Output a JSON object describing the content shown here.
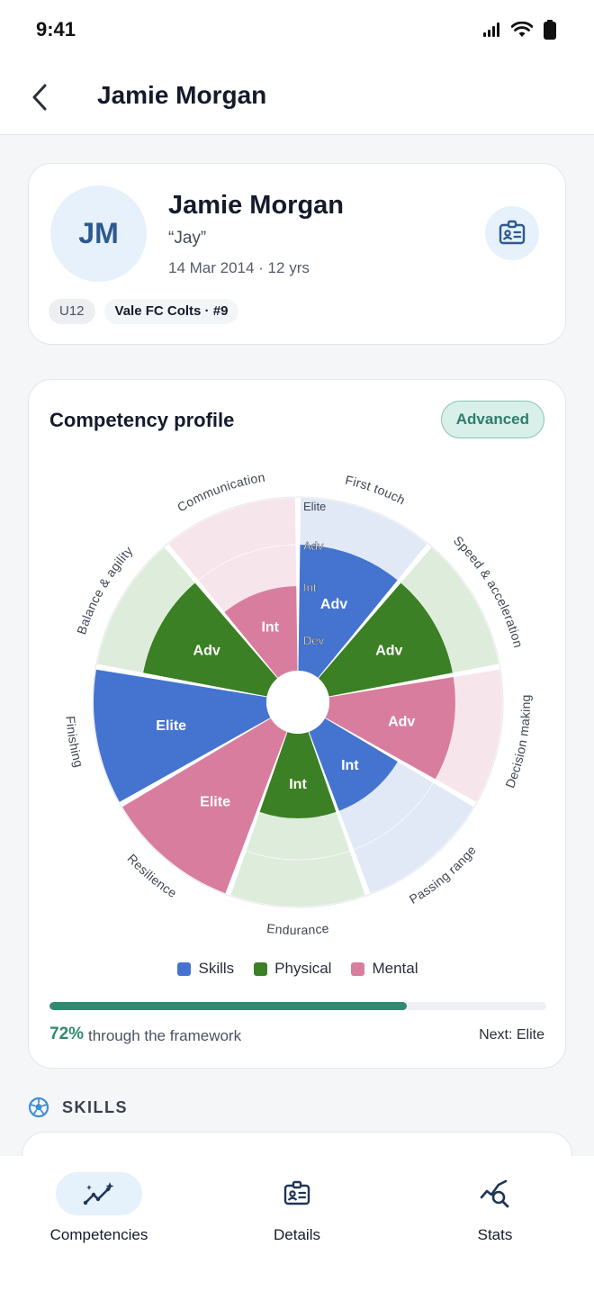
{
  "status_bar": {
    "time": "9:41"
  },
  "header": {
    "title": "Jamie Morgan"
  },
  "profile": {
    "initials": "JM",
    "name": "Jamie Morgan",
    "nickname": "“Jay”",
    "dob_age": "14 Mar 2014 · 12 yrs",
    "chips": [
      "U12",
      "Vale FC Colts · #9"
    ]
  },
  "competency": {
    "title": "Competency profile",
    "level_badge": "Advanced",
    "progress_percent": 72,
    "progress_label": "72%",
    "progress_text": "through the framework",
    "next_text": "Next: Elite"
  },
  "chart_data": {
    "type": "polar-area",
    "level_scale": [
      "Dev",
      "Int",
      "Adv",
      "Elite"
    ],
    "segments": [
      {
        "name": "First touch",
        "category": "Skills",
        "level": "Adv"
      },
      {
        "name": "Speed & acceleration",
        "category": "Physical",
        "level": "Adv"
      },
      {
        "name": "Decision making",
        "category": "Mental",
        "level": "Adv"
      },
      {
        "name": "Passing range",
        "category": "Skills",
        "level": "Int"
      },
      {
        "name": "Endurance",
        "category": "Physical",
        "level": "Int"
      },
      {
        "name": "Resilience",
        "category": "Mental",
        "level": "Elite"
      },
      {
        "name": "Finishing",
        "category": "Skills",
        "level": "Elite"
      },
      {
        "name": "Balance & agility",
        "category": "Physical",
        "level": "Adv"
      },
      {
        "name": "Communication",
        "category": "Mental",
        "level": "Int"
      }
    ],
    "legend": [
      {
        "name": "Skills",
        "color": "#4474d0",
        "light": "#e0e9f5"
      },
      {
        "name": "Physical",
        "color": "#3b8024",
        "light": "#deecdc"
      },
      {
        "name": "Mental",
        "color": "#d97d9e",
        "light": "#f7e5ec"
      }
    ],
    "legend_placement": "bottom"
  },
  "skills_section": {
    "title": "SKILLS"
  },
  "bottom_nav": {
    "tabs": [
      {
        "label": "Competencies",
        "icon": "sparkle-trend-icon",
        "active": true
      },
      {
        "label": "Details",
        "icon": "id-card-icon",
        "active": false
      },
      {
        "label": "Stats",
        "icon": "chart-search-icon",
        "active": false
      }
    ]
  }
}
